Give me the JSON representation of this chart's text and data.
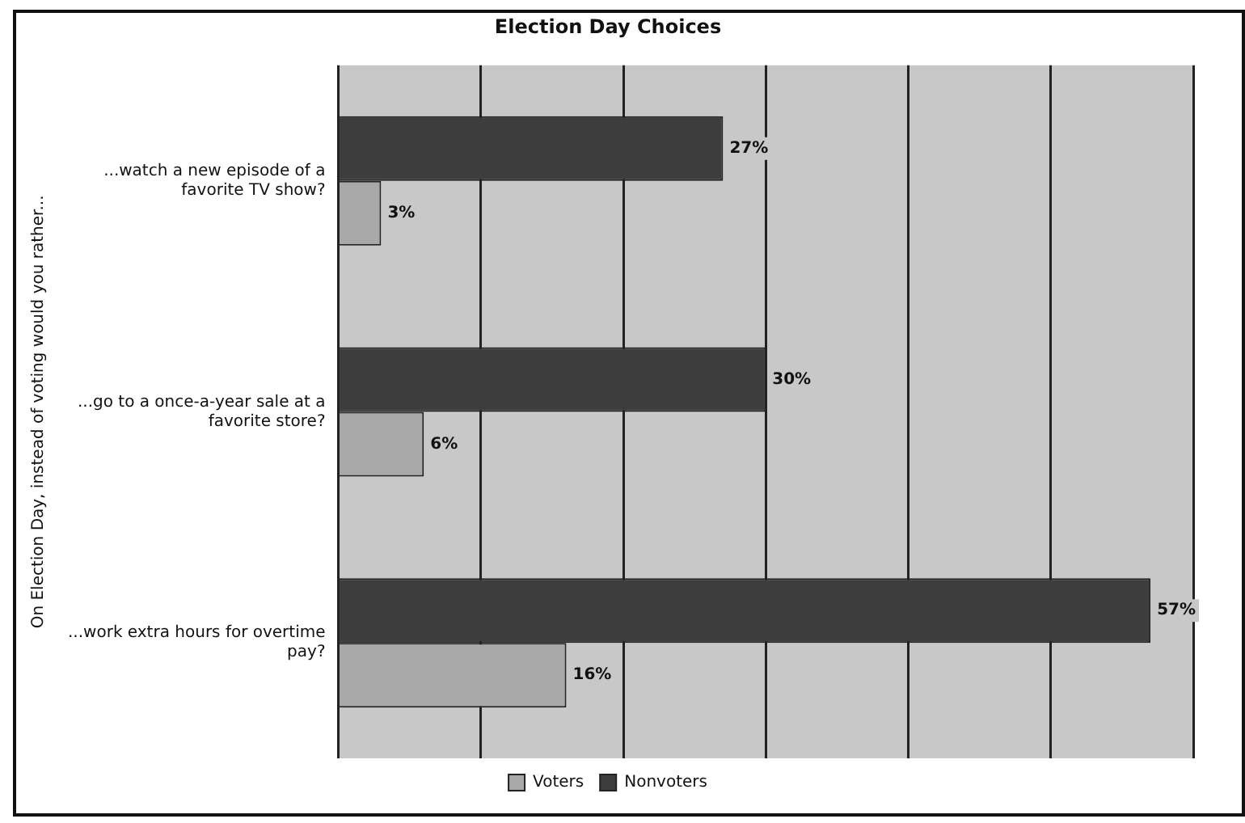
{
  "chart_data": {
    "type": "bar",
    "orientation": "horizontal",
    "title": "Election Day Choices",
    "ylabel": "On Election Day, instead of voting would you rather...",
    "categories": [
      "...watch a new episode of a favorite TV show?",
      "...go to a once-a-year sale at a favorite store?",
      "...work extra hours for overtime pay?"
    ],
    "series": [
      {
        "name": "Nonvoters",
        "color": "#3d3d3d",
        "values": [
          27,
          30,
          57
        ],
        "value_labels": [
          "27%",
          "30%",
          "57%"
        ]
      },
      {
        "name": "Voters",
        "color": "#a8a8a8",
        "values": [
          3,
          6,
          16
        ],
        "value_labels": [
          "3%",
          "6%",
          "16%"
        ]
      }
    ],
    "xlim": [
      0,
      60
    ],
    "xticks": [
      {
        "value": 0,
        "label": null
      },
      {
        "value": 10,
        "label": null
      },
      {
        "value": 20,
        "label": null
      },
      {
        "value": 30,
        "label": null
      },
      {
        "value": 40,
        "label": null
      },
      {
        "value": 50,
        "label": null
      },
      {
        "value": 60,
        "label": null
      }
    ],
    "grid": "x",
    "legend": "bottom",
    "tick_labels": "y"
  }
}
